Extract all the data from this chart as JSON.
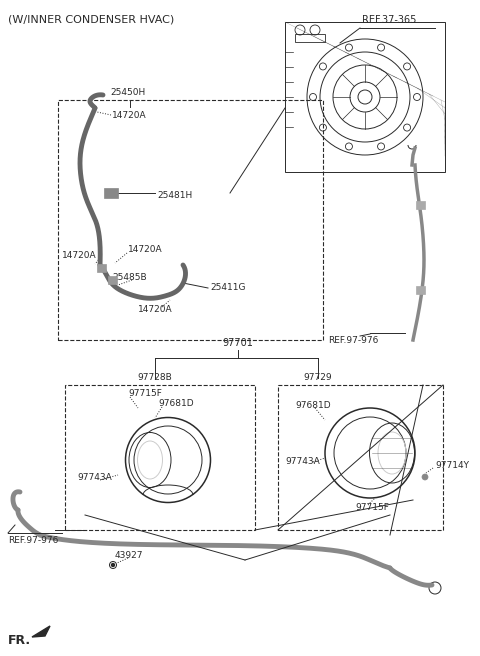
{
  "title": "(W/INNER CONDENSER HVAC)",
  "bg_color": "#ffffff",
  "line_color": "#2a2a2a",
  "part_color_dark": "#888888",
  "part_color_light": "#cccccc",
  "labels": {
    "ref_37_365": "REF.37-365",
    "25450H": "25450H",
    "14720A_1": "14720A",
    "25481H": "25481H",
    "14720A_2": "14720A",
    "14720A_3": "14720A",
    "25485B": "25485B",
    "25411G": "25411G",
    "14720A_4": "14720A",
    "ref_97_976_top": "REF.97-976",
    "97701": "97701",
    "97728B": "97728B",
    "97729": "97729",
    "97715F_left": "97715F",
    "97681D_left": "97681D",
    "97743A_left": "97743A",
    "97681D_right": "97681D",
    "97743A_right": "97743A",
    "97715F_right": "97715F",
    "97714Y": "97714Y",
    "ref_97_976_bot": "REF.97-976",
    "43927": "43927",
    "FR": "FR."
  },
  "figsize": [
    4.8,
    6.56
  ],
  "dpi": 100
}
